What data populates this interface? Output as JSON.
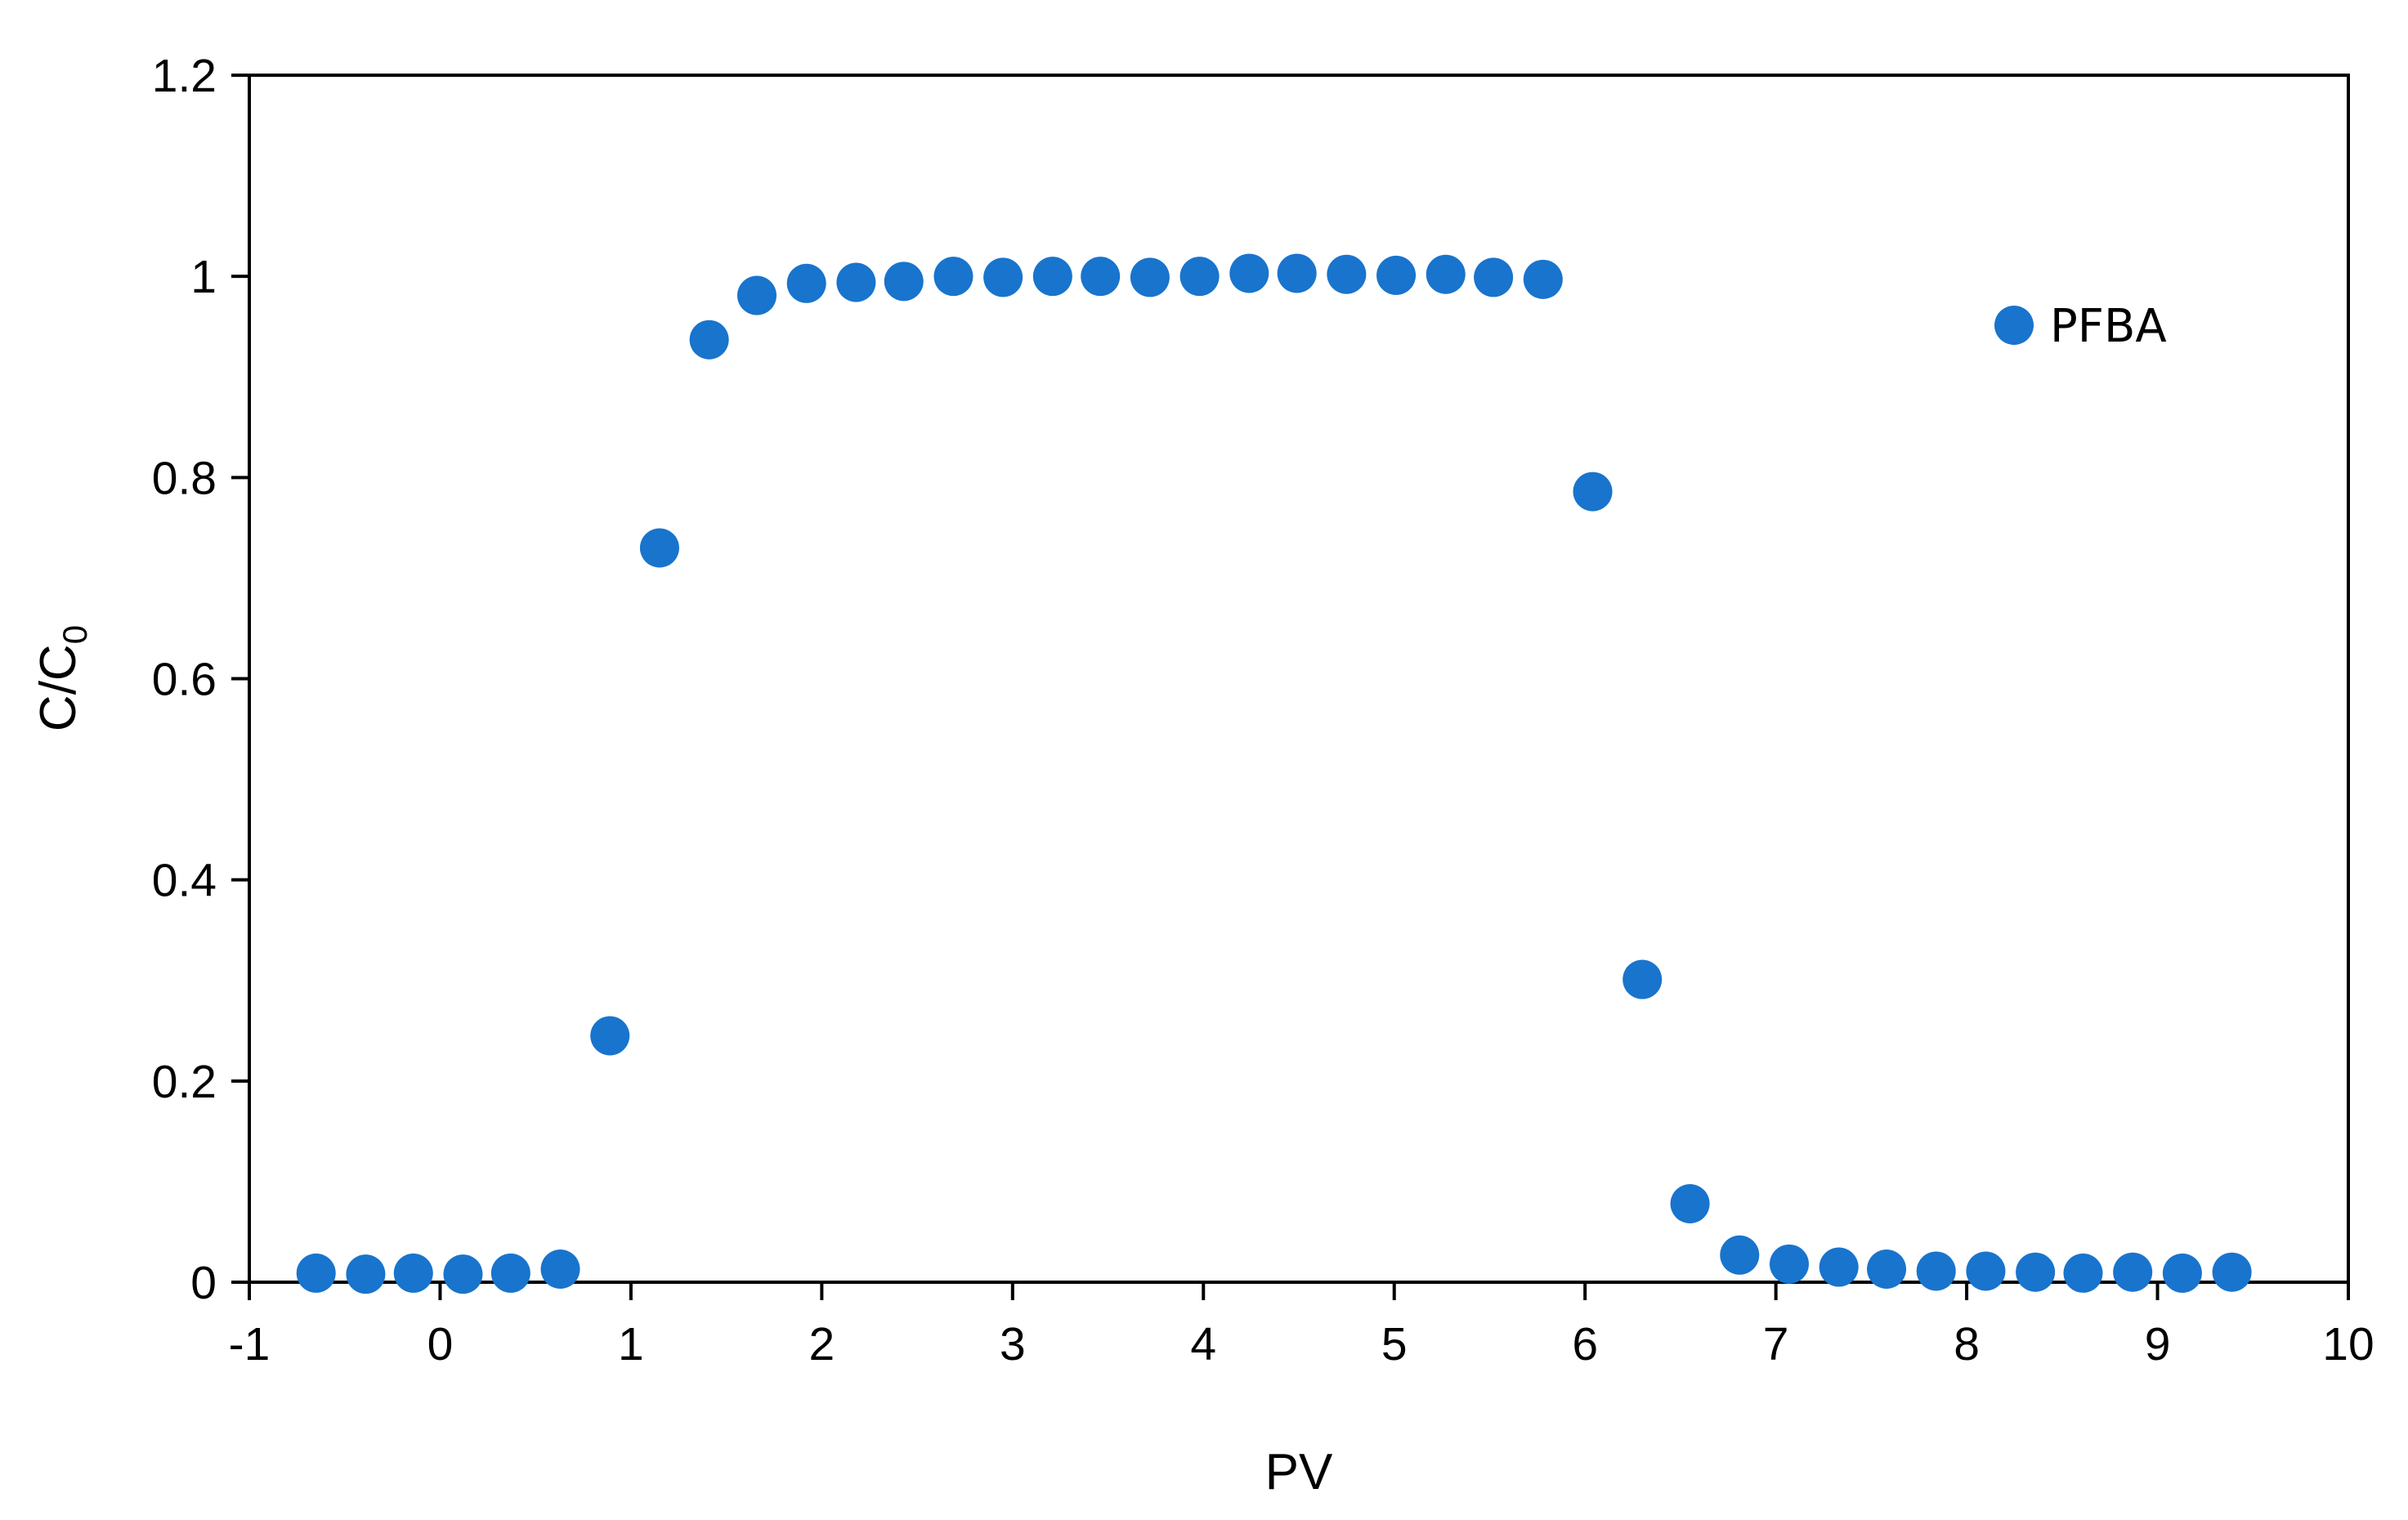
{
  "chart_data": {
    "type": "scatter",
    "title": "",
    "xlabel": "PV",
    "ylabel": {
      "main": "C/C",
      "subscript": "0"
    },
    "xlim": [
      -1,
      10
    ],
    "ylim": [
      0,
      1.2
    ],
    "xticks": [
      "-1",
      "0",
      "1",
      "2",
      "3",
      "4",
      "5",
      "6",
      "7",
      "8",
      "9",
      "10"
    ],
    "yticks": [
      "0",
      "0.2",
      "0.4",
      "0.6",
      "0.8",
      "1",
      "1.2"
    ],
    "grid": false,
    "legend_position": "top-right",
    "series": [
      {
        "name": "PFBA",
        "color": "#1874CD",
        "marker": "circle",
        "points": [
          [
            -0.65,
            0.009
          ],
          [
            -0.39,
            0.008
          ],
          [
            -0.14,
            0.009
          ],
          [
            0.12,
            0.008
          ],
          [
            0.37,
            0.009
          ],
          [
            0.63,
            0.013
          ],
          [
            0.89,
            0.245
          ],
          [
            1.15,
            0.73
          ],
          [
            1.41,
            0.937
          ],
          [
            1.66,
            0.981
          ],
          [
            1.92,
            0.993
          ],
          [
            2.18,
            0.994
          ],
          [
            2.43,
            0.995
          ],
          [
            2.69,
            1.0
          ],
          [
            2.95,
            0.999
          ],
          [
            3.21,
            1.0
          ],
          [
            3.46,
            1.0
          ],
          [
            3.72,
            0.999
          ],
          [
            3.98,
            1.0
          ],
          [
            4.24,
            1.003
          ],
          [
            4.49,
            1.003
          ],
          [
            4.75,
            1.002
          ],
          [
            5.01,
            1.001
          ],
          [
            5.27,
            1.002
          ],
          [
            5.52,
            0.999
          ],
          [
            5.78,
            0.997
          ],
          [
            6.04,
            0.786
          ],
          [
            6.3,
            0.301
          ],
          [
            6.55,
            0.078
          ],
          [
            6.81,
            0.027
          ],
          [
            7.07,
            0.018
          ],
          [
            7.33,
            0.015
          ],
          [
            7.58,
            0.013
          ],
          [
            7.84,
            0.011
          ],
          [
            8.1,
            0.011
          ],
          [
            8.36,
            0.01
          ],
          [
            8.61,
            0.009
          ],
          [
            8.87,
            0.01
          ],
          [
            9.13,
            0.009
          ],
          [
            9.39,
            0.01
          ]
        ]
      }
    ]
  }
}
